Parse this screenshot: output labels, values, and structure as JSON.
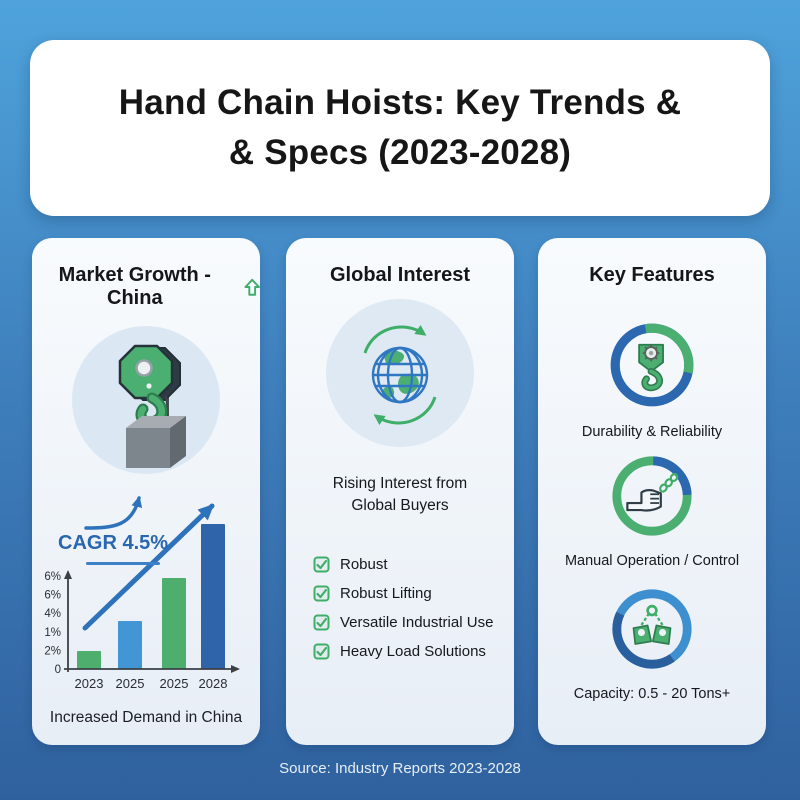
{
  "title": {
    "line1": "Hand Chain Hoists: Key Trends &",
    "line2": "& Specs (2023-2028)"
  },
  "market_growth": {
    "header": "Market Growth - China",
    "trend_icon": "up-arrow"
  },
  "chart_data": {
    "type": "bar",
    "title": "Market Growth - China",
    "categories": [
      "2023",
      "2025",
      "2025",
      "2028"
    ],
    "values": [
      0.9,
      2.4,
      4.5,
      7.2
    ],
    "ymax": 7.2,
    "bar_colors": [
      "#4DAE6E",
      "#4296D6",
      "#4DAE6E",
      "#2F64A8"
    ],
    "ytick_labels": [
      "6%",
      "6%",
      "4%",
      "1%",
      "2%",
      "0"
    ],
    "annotation": "CAGR 4.5%",
    "caption": "Increased Demand in China",
    "grid": false,
    "legend": "none"
  },
  "global_interest": {
    "header": "Global Interest",
    "subtitle": "Rising Interest from Global Buyers",
    "items": [
      "Robust",
      "Robust Lifting",
      "Versatile Industrial Use",
      "Heavy Load Solutions"
    ]
  },
  "key_features": {
    "header": "Key Features",
    "features": [
      {
        "icon": "hook-gear-icon",
        "label": "Durability & Reliability"
      },
      {
        "icon": "hand-chain-icon",
        "label": "Manual Operation / Control"
      },
      {
        "icon": "chain-weights-icon",
        "label": "Capacity: 0.5 - 20 Tons+"
      }
    ]
  },
  "footer": {
    "source": "Source: Industry Reports 2023-2028"
  },
  "palette": {
    "background_top": "#4FA3DC",
    "background_bottom": "#2F619E",
    "card_bg": "#F0F5FA",
    "green": "#3FAE68",
    "blue_accent": "#2E6DB4",
    "dark_bar_blue": "#2F64A8",
    "light_bar_blue": "#4296D6",
    "title_text": "#161616"
  }
}
